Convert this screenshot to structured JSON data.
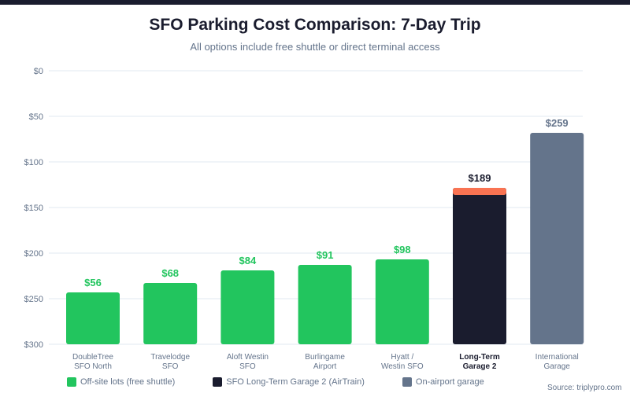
{
  "chart_data": {
    "type": "bar",
    "title": "SFO Parking Cost Comparison: 7-Day Trip",
    "subtitle": "All options include free shuttle or direct terminal access",
    "yticks": [
      "$0",
      "$50",
      "$100",
      "$150",
      "$200",
      "$250",
      "$300"
    ],
    "ylim": [
      0,
      300
    ],
    "categories": [
      [
        "DoubleTree",
        "SFO North"
      ],
      [
        "Travelodge",
        "SFO"
      ],
      [
        "Aloft Westin",
        "SFO"
      ],
      [
        "Burlingame",
        "Airport"
      ],
      [
        "Hyatt /",
        "Westin SFO"
      ],
      [
        "Long-Term",
        "Garage 2"
      ],
      [
        "International",
        "Garage"
      ]
    ],
    "values": [
      56,
      68,
      84,
      91,
      98,
      189,
      259
    ],
    "labels": [
      "$56",
      "$68",
      "$84",
      "$91",
      "$98",
      "$189",
      "$259"
    ],
    "groups": [
      "offsite",
      "offsite",
      "offsite",
      "offsite",
      "offsite",
      "ltg",
      "onairport"
    ],
    "highlight_index": 5,
    "legend": [
      {
        "key": "offsite",
        "label": "Off-site lots (free shuttle)",
        "color": "#22c55e"
      },
      {
        "key": "ltg",
        "label": "SFO Long-Term Garage 2 (AirTrain)",
        "color": "#1a1c2e"
      },
      {
        "key": "onairport",
        "label": "On-airport garage",
        "color": "#64748b"
      }
    ],
    "accent_color": "#f97352",
    "source": "Source: triplypro.com"
  }
}
